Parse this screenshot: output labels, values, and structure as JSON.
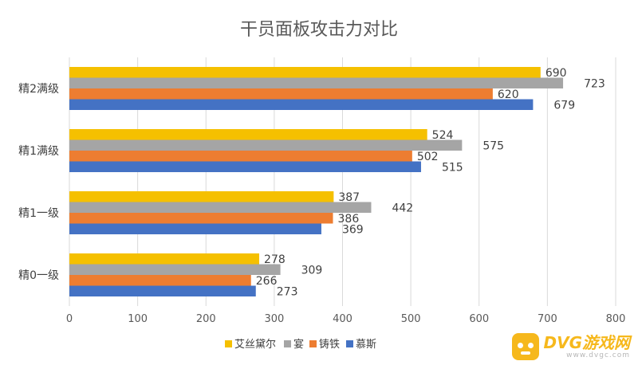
{
  "chart_data": {
    "type": "bar",
    "orientation": "horizontal",
    "title": "干员面板攻击力对比",
    "categories": [
      "精0一级",
      "精1一级",
      "精1满级",
      "精2满级"
    ],
    "series": [
      {
        "name": "艾丝黛尔",
        "color": "#F5C000",
        "values": [
          278,
          387,
          524,
          690
        ]
      },
      {
        "name": "宴",
        "color": "#A5A5A5",
        "values": [
          309,
          442,
          575,
          723
        ]
      },
      {
        "name": "铸铁",
        "color": "#ED7D31",
        "values": [
          266,
          386,
          502,
          620
        ]
      },
      {
        "name": "慕斯",
        "color": "#4472C4",
        "values": [
          273,
          369,
          515,
          679
        ]
      }
    ],
    "xlim": [
      0,
      800
    ],
    "xticks": [
      "0",
      "100",
      "200",
      "300",
      "400",
      "500",
      "600",
      "700",
      "800"
    ],
    "grid": true,
    "legend_position": "bottom"
  },
  "watermark": {
    "name": "DVG游戏网",
    "url": "www.dvgc.com"
  }
}
